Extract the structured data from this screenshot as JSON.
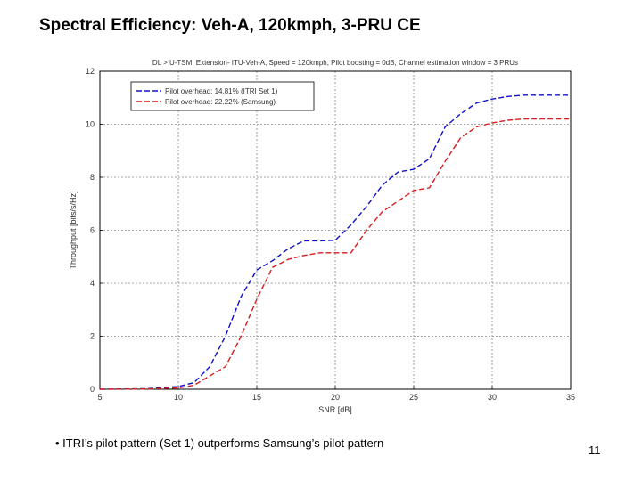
{
  "slide": {
    "title": "Spectral Efficiency: Veh-A, 120kmph, 3-PRU CE",
    "bullet": "• ITRI’s pilot pattern (Set 1) outperforms Samsung’s pilot pattern",
    "page_number": "11"
  },
  "colors": {
    "series_itri": "#1010c8",
    "series_samsung": "#d81c1c",
    "grid": "#888888",
    "axis": "#000000"
  },
  "chart_data": {
    "type": "line",
    "title": "DL > U-TSM, Extension- ITU-Veh-A, Speed = 120kmph, Pilot boosting = 0dB, Channel estimation window = 3 PRUs",
    "xlabel": "SNR [dB]",
    "ylabel": "Throughput [bits/s/Hz]",
    "xlim": [
      5,
      35
    ],
    "ylim": [
      0,
      12
    ],
    "xticks": [
      5,
      10,
      15,
      20,
      25,
      30,
      35
    ],
    "yticks": [
      0,
      2,
      4,
      6,
      8,
      10,
      12
    ],
    "grid": true,
    "legend_position": "top-left",
    "series": [
      {
        "name": "Pilot overhead: 14.81% (ITRI Set 1)",
        "dash": "blue-dashed",
        "x": [
          5,
          8,
          10,
          11,
          12,
          13,
          14,
          15,
          16,
          17,
          18,
          19,
          20,
          21,
          22,
          23,
          24,
          25,
          26,
          27,
          28,
          29,
          30,
          31,
          32,
          33,
          34,
          35
        ],
        "y": [
          0.0,
          0.02,
          0.1,
          0.25,
          0.85,
          2.0,
          3.5,
          4.5,
          4.85,
          5.3,
          5.6,
          5.6,
          5.62,
          6.2,
          6.9,
          7.7,
          8.2,
          8.3,
          8.7,
          9.9,
          10.4,
          10.8,
          10.95,
          11.05,
          11.1,
          11.1,
          11.1,
          11.1
        ]
      },
      {
        "name": "Pilot overhead: 22.22% (Samsung)",
        "dash": "red-dashed",
        "x": [
          5,
          8,
          10,
          11,
          12,
          13,
          14,
          15,
          16,
          17,
          18,
          19,
          20,
          21,
          22,
          23,
          24,
          25,
          26,
          27,
          28,
          29,
          30,
          31,
          32,
          33,
          34,
          35
        ],
        "y": [
          0.0,
          0.01,
          0.05,
          0.15,
          0.5,
          0.85,
          2.0,
          3.4,
          4.6,
          4.9,
          5.05,
          5.15,
          5.15,
          5.15,
          6.0,
          6.7,
          7.1,
          7.5,
          7.6,
          8.6,
          9.5,
          9.9,
          10.05,
          10.15,
          10.2,
          10.2,
          10.2,
          10.2
        ]
      }
    ]
  }
}
